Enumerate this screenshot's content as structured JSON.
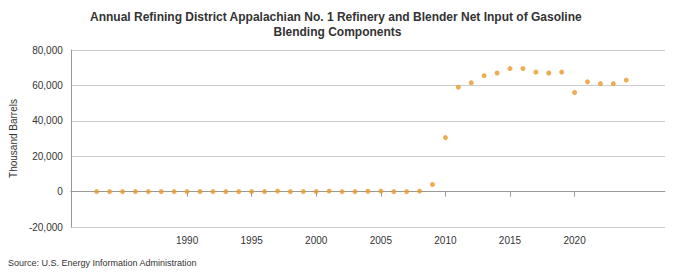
{
  "chart_data": {
    "type": "scatter",
    "title": "Annual Refining District Appalachian No. 1 Refinery and Blender Net Input of Gasoline Blending Components",
    "y_label": "Thousand Barrels",
    "annotation": "Source: U.S. Energy Information Administration",
    "x": [
      1983,
      1984,
      1985,
      1986,
      1987,
      1988,
      1989,
      1990,
      1991,
      1992,
      1993,
      1994,
      1995,
      1996,
      1997,
      1998,
      1999,
      2000,
      2001,
      2002,
      2003,
      2004,
      2005,
      2006,
      2007,
      2008,
      2009,
      2010,
      2011,
      2012,
      2013,
      2014,
      2015,
      2016,
      2017,
      2018,
      2019,
      2020,
      2021,
      2022,
      2023,
      2024
    ],
    "values": [
      0,
      0,
      0,
      0,
      0,
      0,
      0,
      0,
      0,
      0,
      0,
      0,
      0,
      0,
      300,
      0,
      0,
      0,
      300,
      0,
      0,
      200,
      300,
      0,
      0,
      300,
      4000,
      30500,
      59000,
      61500,
      65500,
      67000,
      69500,
      69500,
      67500,
      67000,
      67500,
      56000,
      62000,
      61000,
      61000,
      63000
    ],
    "color": "#e69a29",
    "marker": "circle",
    "xlim": [
      1981,
      2027
    ],
    "xticks": [
      1990,
      1995,
      2000,
      2005,
      2010,
      2015,
      2020
    ],
    "ylim": [
      -20000,
      80000
    ],
    "yticks": [
      {
        "value": -20000,
        "label": "-20,000"
      },
      0,
      {
        "value": 20000,
        "label": "20,000"
      },
      {
        "value": 40000,
        "label": "40,000"
      },
      {
        "value": 60000,
        "label": "60,000"
      },
      {
        "value": 80000,
        "label": "80,000"
      }
    ],
    "grid": true
  }
}
